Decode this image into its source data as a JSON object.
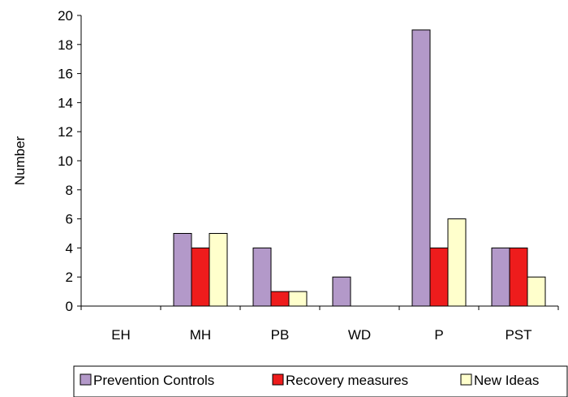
{
  "chart_data": {
    "type": "bar",
    "title": "",
    "xlabel": "",
    "ylabel": "Number",
    "ylim": [
      0,
      20
    ],
    "yticks": [
      0,
      2,
      4,
      6,
      8,
      10,
      12,
      14,
      16,
      18,
      20
    ],
    "categories": [
      "EH",
      "MH",
      "PB",
      "WD",
      "P",
      "PST"
    ],
    "series": [
      {
        "name": "Prevention Controls",
        "color": "#B399C9",
        "values": [
          0,
          5,
          4,
          2,
          19,
          4
        ]
      },
      {
        "name": "Recovery measures",
        "color": "#EE1C1C",
        "values": [
          0,
          4,
          1,
          0,
          4,
          4
        ]
      },
      {
        "name": "New Ideas",
        "color": "#FFFFCC",
        "values": [
          0,
          5,
          1,
          0,
          6,
          2
        ]
      }
    ],
    "grid": false,
    "legend_position": "bottom"
  }
}
